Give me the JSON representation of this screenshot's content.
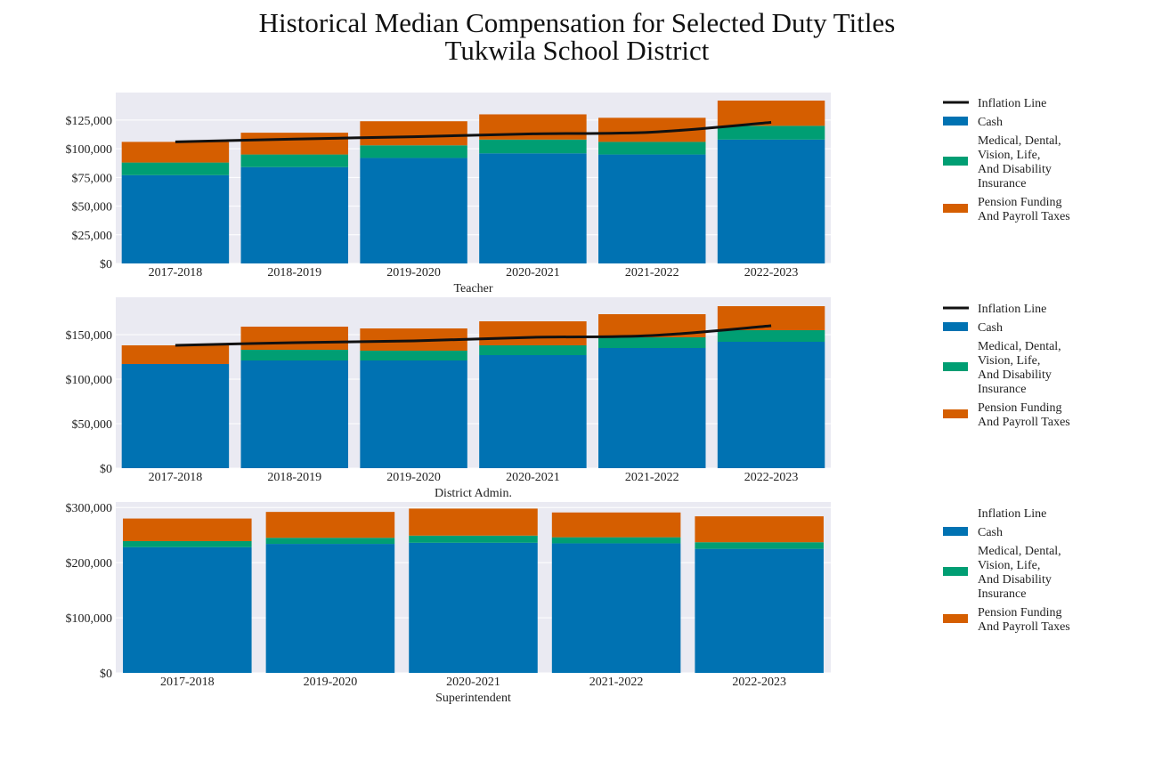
{
  "title": {
    "line1": "Historical Median Compensation for Selected Duty Titles",
    "line2": "Tukwila School District"
  },
  "colors": {
    "cash": "#0072b2",
    "insurance": "#009e73",
    "pension": "#d55e00",
    "inflation": "#111111",
    "plot_bg": "#eaeaf2",
    "grid": "#ffffff"
  },
  "chart_data": [
    {
      "type": "bar",
      "stacked": true,
      "xlabel": "Teacher",
      "categories": [
        "2017-2018",
        "2018-2019",
        "2019-2020",
        "2020-2021",
        "2021-2022",
        "2022-2023"
      ],
      "series": [
        {
          "name": "Cash",
          "key": "cash",
          "values": [
            77000,
            84000,
            92000,
            96000,
            95000,
            108000
          ]
        },
        {
          "name": "Medical, Dental, Vision, Life, And Disability Insurance",
          "key": "insurance",
          "values": [
            11000,
            11000,
            11000,
            12000,
            11000,
            12000
          ]
        },
        {
          "name": "Pension Funding And Payroll Taxes",
          "key": "pension",
          "values": [
            18000,
            19000,
            21000,
            22000,
            21000,
            22000
          ]
        }
      ],
      "inflation_line": [
        106000,
        108500,
        110500,
        113000,
        114500,
        123000
      ],
      "yticks": [
        0,
        25000,
        50000,
        75000,
        100000,
        125000
      ],
      "ytick_labels": [
        "$0",
        "$25,000",
        "$50,000",
        "$75,000",
        "$100,000",
        "$125,000"
      ],
      "ylim": [
        0,
        149000
      ],
      "legend": [
        "Inflation Line",
        "Cash",
        "Medical, Dental,|Vision, Life,|And Disability|Insurance",
        "Pension Funding|And Payroll Taxes"
      ]
    },
    {
      "type": "bar",
      "stacked": true,
      "xlabel": "District Admin.",
      "categories": [
        "2017-2018",
        "2018-2019",
        "2019-2020",
        "2020-2021",
        "2021-2022",
        "2022-2023"
      ],
      "series": [
        {
          "name": "Cash",
          "key": "cash",
          "values": [
            117000,
            121000,
            121000,
            127000,
            135000,
            142000
          ]
        },
        {
          "name": "Medical, Dental, Vision, Life, And Disability Insurance",
          "key": "insurance",
          "values": [
            0,
            12000,
            11000,
            11000,
            12000,
            13000
          ]
        },
        {
          "name": "Pension Funding And Payroll Taxes",
          "key": "pension",
          "values": [
            21000,
            26000,
            25000,
            27000,
            26000,
            27000
          ]
        }
      ],
      "inflation_line": [
        138000,
        141000,
        143000,
        147000,
        149000,
        160000
      ],
      "yticks": [
        0,
        50000,
        100000,
        150000
      ],
      "ytick_labels": [
        "$0",
        "$50,000",
        "$100,000",
        "$150,000"
      ],
      "ylim": [
        0,
        192000
      ],
      "legend": [
        "Inflation Line",
        "Cash",
        "Medical, Dental,|Vision, Life,|And Disability|Insurance",
        "Pension Funding|And Payroll Taxes"
      ]
    },
    {
      "type": "bar",
      "stacked": true,
      "xlabel": "Superintendent",
      "categories": [
        "2017-2018",
        "2019-2020",
        "2020-2021",
        "2021-2022",
        "2022-2023"
      ],
      "series": [
        {
          "name": "Cash",
          "key": "cash",
          "values": [
            228000,
            234000,
            236000,
            235000,
            225000
          ]
        },
        {
          "name": "Medical, Dental, Vision, Life, And Disability Insurance",
          "key": "insurance",
          "values": [
            11000,
            11000,
            13000,
            11000,
            12000
          ]
        },
        {
          "name": "Pension Funding And Payroll Taxes",
          "key": "pension",
          "values": [
            41000,
            47000,
            49000,
            45000,
            47000
          ]
        }
      ],
      "inflation_line": null,
      "yticks": [
        0,
        100000,
        200000,
        300000
      ],
      "ytick_labels": [
        "$0",
        "$100,000",
        "$200,000",
        "$300,000"
      ],
      "ylim": [
        0,
        310000
      ],
      "legend": [
        "Inflation Line",
        "Cash",
        "Medical, Dental,|Vision, Life,|And Disability|Insurance",
        "Pension Funding|And Payroll Taxes"
      ]
    }
  ]
}
